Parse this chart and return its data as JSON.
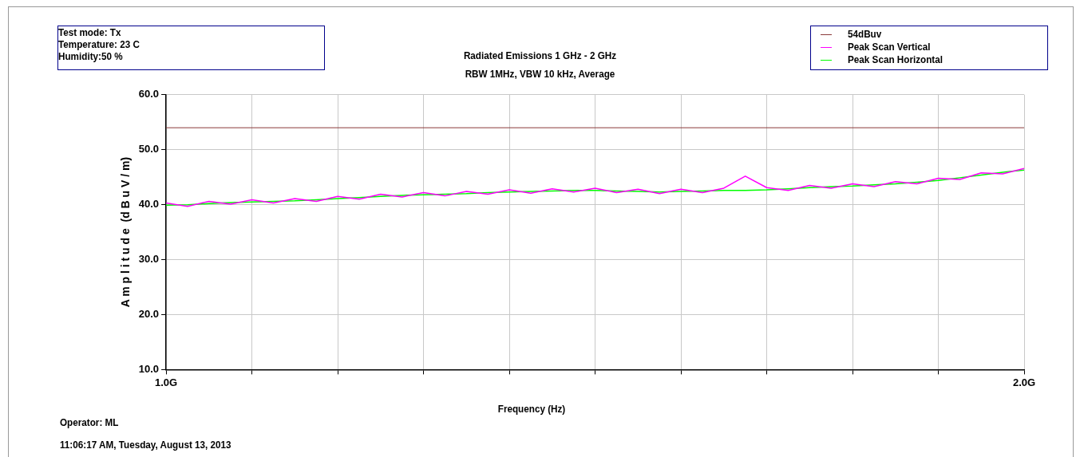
{
  "chart_data": {
    "type": "line",
    "title": "Radiated Emissions 1 GHz - 2 GHz",
    "subtitle": "RBW 1MHz, VBW 10 kHz, Average",
    "xlabel": "Frequency (Hz)",
    "ylabel": "A m p l i t u d e  (d B u V / m)",
    "annotations": [
      "Test mode: Tx",
      "Temperature: 23 C",
      "Humidity:50 %",
      "Operator: ML",
      "11:06:17 AM, Tuesday, August 13, 2013"
    ],
    "x": [
      1.0,
      1.025,
      1.05,
      1.075,
      1.1,
      1.125,
      1.15,
      1.175,
      1.2,
      1.225,
      1.25,
      1.275,
      1.3,
      1.325,
      1.35,
      1.375,
      1.4,
      1.425,
      1.45,
      1.475,
      1.5,
      1.525,
      1.55,
      1.575,
      1.6,
      1.625,
      1.65,
      1.675,
      1.7,
      1.725,
      1.75,
      1.775,
      1.8,
      1.825,
      1.85,
      1.875,
      1.9,
      1.925,
      1.95,
      1.975,
      2.0
    ],
    "series": [
      {
        "name": "Peak Scan Vertical",
        "color": "#ff00ff",
        "values": [
          40.3,
          39.7,
          40.6,
          40.1,
          40.9,
          40.3,
          41.1,
          40.6,
          41.5,
          41.0,
          41.9,
          41.4,
          42.2,
          41.6,
          42.4,
          41.9,
          42.7,
          42.1,
          42.9,
          42.3,
          43.0,
          42.2,
          42.8,
          42.0,
          42.8,
          42.2,
          43.0,
          45.2,
          43.1,
          42.6,
          43.5,
          43.0,
          43.8,
          43.3,
          44.2,
          43.8,
          44.8,
          44.6,
          45.8,
          45.6,
          46.6
        ]
      },
      {
        "name": "Peak Scan Horizontal",
        "color": "#00ff00",
        "values": [
          39.9,
          40.0,
          40.2,
          40.4,
          40.5,
          40.6,
          40.7,
          40.9,
          41.1,
          41.3,
          41.5,
          41.7,
          41.8,
          41.9,
          42.0,
          42.2,
          42.3,
          42.4,
          42.5,
          42.6,
          42.6,
          42.5,
          42.4,
          42.3,
          42.4,
          42.5,
          42.6,
          42.6,
          42.7,
          42.9,
          43.1,
          43.3,
          43.4,
          43.6,
          43.8,
          44.1,
          44.4,
          44.9,
          45.4,
          45.9,
          46.3
        ]
      }
    ],
    "ref_lines": [
      {
        "axis": "y",
        "value": 54,
        "label": "54dBuv",
        "color": "#8b3a3a"
      }
    ],
    "xlim": [
      1.0,
      2.0
    ],
    "xticks": [
      {
        "value": 1.0,
        "label": "1.0G"
      },
      {
        "value": 1.1,
        "label": null
      },
      {
        "value": 1.2,
        "label": null
      },
      {
        "value": 1.3,
        "label": null
      },
      {
        "value": 1.4,
        "label": null
      },
      {
        "value": 1.5,
        "label": null
      },
      {
        "value": 1.6,
        "label": null
      },
      {
        "value": 1.7,
        "label": null
      },
      {
        "value": 1.8,
        "label": null
      },
      {
        "value": 1.9,
        "label": null
      },
      {
        "value": 2.0,
        "label": "2.0G"
      }
    ],
    "ylim": [
      10,
      60
    ],
    "yticks": [
      {
        "value": 10,
        "label": "10.0"
      },
      {
        "value": 20,
        "label": "20.0"
      },
      {
        "value": 30,
        "label": "30.0"
      },
      {
        "value": 40,
        "label": "40.0"
      },
      {
        "value": 50,
        "label": "50.0"
      },
      {
        "value": 60,
        "label": "60.0"
      }
    ],
    "grid": true,
    "legend": "top right",
    "marker": "none",
    "line_style": "solid"
  }
}
